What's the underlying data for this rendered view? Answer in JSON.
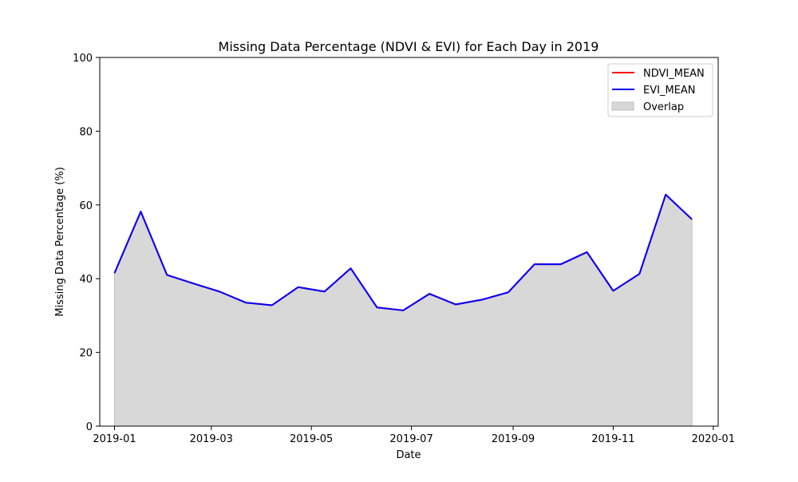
{
  "chart_data": {
    "type": "area",
    "title": "Missing Data Percentage (NDVI & EVI) for Each Day in 2019",
    "xlabel": "Date",
    "ylabel": "Missing Data Percentage (%)",
    "xlim": [
      "2018-12-23",
      "2020-01-04"
    ],
    "ylim": [
      0,
      100
    ],
    "x_ticks": [
      "2019-01-01",
      "2019-03-01",
      "2019-05-01",
      "2019-07-01",
      "2019-09-01",
      "2019-11-01",
      "2020-01-01"
    ],
    "x_tick_labels": [
      "2019-01",
      "2019-03",
      "2019-05",
      "2019-07",
      "2019-09",
      "2019-11",
      "2020-01"
    ],
    "y_ticks": [
      0,
      20,
      40,
      60,
      80,
      100
    ],
    "y_tick_labels": [
      "0",
      "20",
      "40",
      "60",
      "80",
      "100"
    ],
    "grid": false,
    "legend_position": "top-right",
    "x": [
      "2019-01-01",
      "2019-01-17",
      "2019-02-02",
      "2019-02-18",
      "2019-03-06",
      "2019-03-22",
      "2019-04-07",
      "2019-04-23",
      "2019-05-09",
      "2019-05-25",
      "2019-06-10",
      "2019-06-26",
      "2019-07-12",
      "2019-07-28",
      "2019-08-13",
      "2019-08-29",
      "2019-09-14",
      "2019-09-30",
      "2019-10-16",
      "2019-11-01",
      "2019-11-17",
      "2019-12-03",
      "2019-12-19"
    ],
    "series": [
      {
        "name": "NDVI_MEAN",
        "kind": "line",
        "color": "#ff0000",
        "values": [
          41.5,
          58.2,
          41.0,
          38.7,
          36.5,
          33.5,
          32.8,
          37.7,
          36.5,
          42.8,
          32.2,
          31.4,
          35.9,
          33.0,
          34.3,
          36.3,
          43.9,
          43.9,
          47.2,
          36.7,
          41.3,
          62.8,
          56.1
        ]
      },
      {
        "name": "EVI_MEAN",
        "kind": "line",
        "color": "#0000ff",
        "values": [
          41.5,
          58.2,
          41.0,
          38.7,
          36.5,
          33.5,
          32.8,
          37.7,
          36.5,
          42.8,
          32.2,
          31.4,
          35.9,
          33.0,
          34.3,
          36.3,
          43.9,
          43.9,
          47.2,
          36.7,
          41.3,
          62.8,
          56.1
        ]
      },
      {
        "name": "Overlap",
        "kind": "fill",
        "color": "#d8d8d8",
        "values": [
          41.5,
          58.2,
          41.0,
          38.7,
          36.5,
          33.5,
          32.8,
          37.7,
          36.5,
          42.8,
          32.2,
          31.4,
          35.9,
          33.0,
          34.3,
          36.3,
          43.9,
          43.9,
          47.2,
          36.7,
          41.3,
          62.8,
          56.1
        ]
      }
    ]
  }
}
